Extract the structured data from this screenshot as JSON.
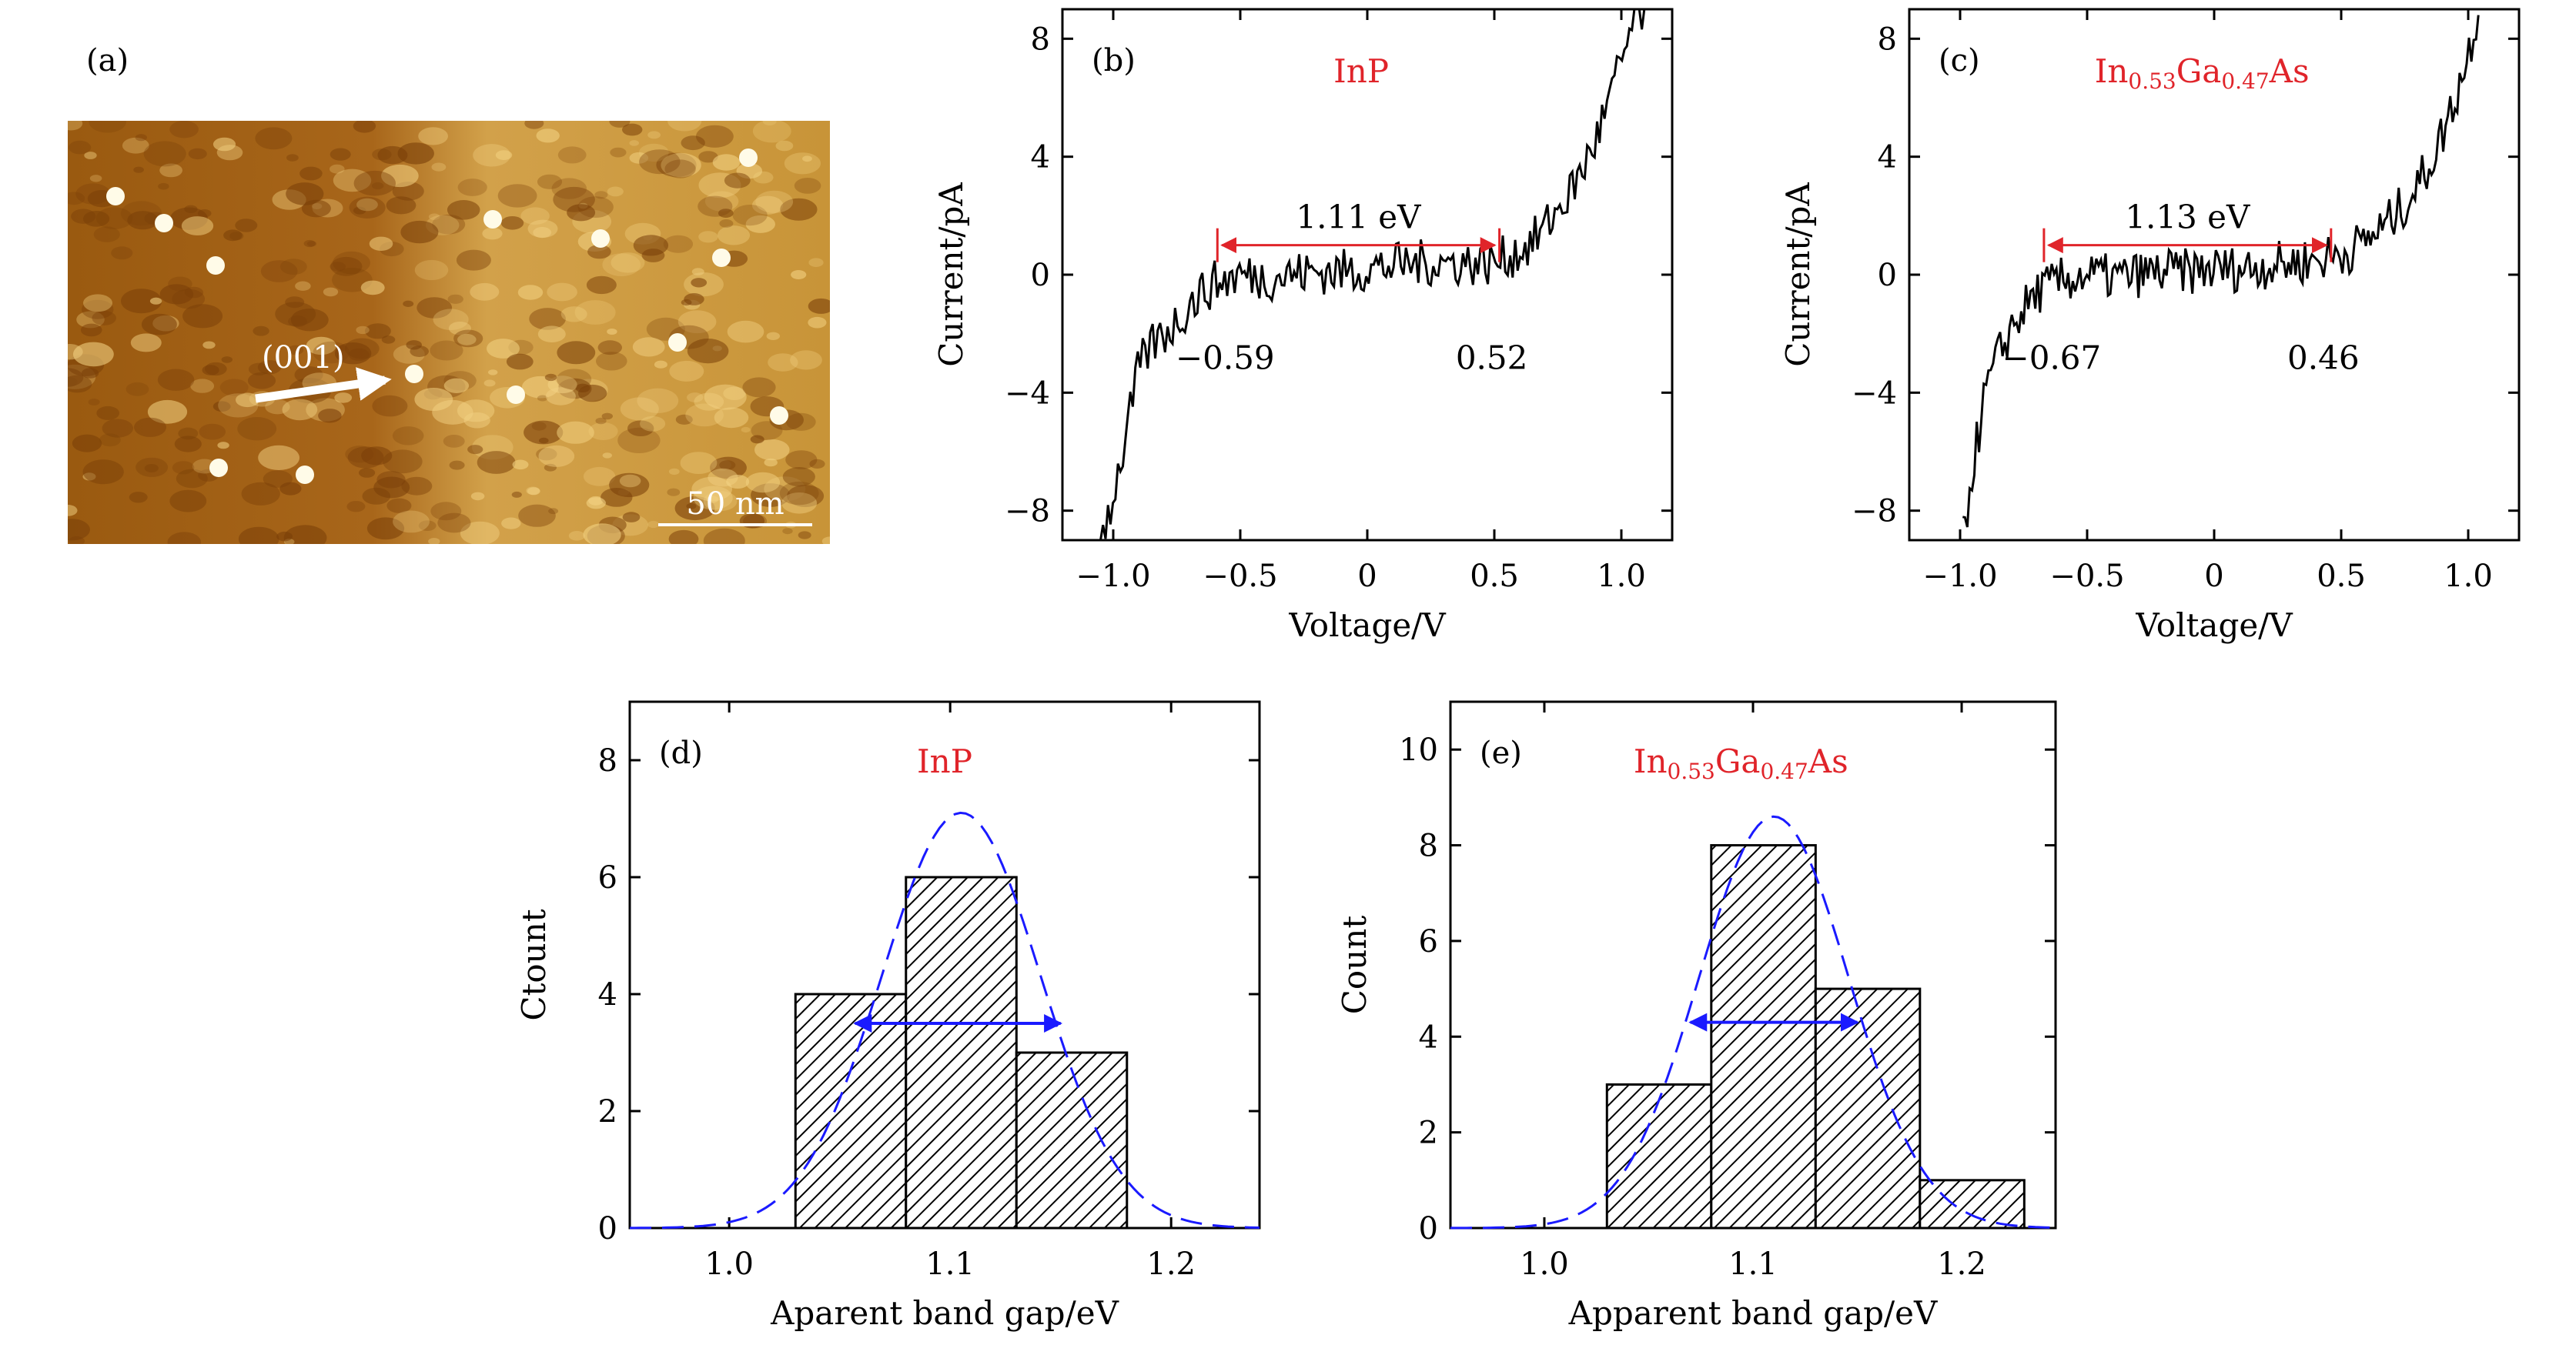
{
  "panel_a": {
    "label": "(a)",
    "arrow_label": "(001)",
    "scale_bar_label": "50 nm"
  },
  "chart_data": [
    {
      "panel": "(b)",
      "type": "line",
      "series_label": "InP",
      "xlabel": "Voltage/V",
      "ylabel": "Current/pA",
      "xlim": [
        -1.2,
        1.2
      ],
      "ylim": [
        -9,
        9
      ],
      "xticks": [
        "−1.0",
        "−0.5",
        "0",
        "0.5",
        "1.0"
      ],
      "yticks": [
        "−8",
        "−4",
        "0",
        "4",
        "8"
      ],
      "gap_label": "1.11 eV",
      "left_edge": -0.59,
      "right_edge": 0.52,
      "left_edge_label": "−0.59",
      "right_edge_label": "0.52",
      "curve": {
        "x": [
          -1.05,
          -1.0,
          -0.95,
          -0.9,
          -0.85,
          -0.8,
          -0.75,
          -0.7,
          -0.65,
          -0.6,
          -0.5,
          -0.4,
          -0.3,
          -0.2,
          -0.1,
          0.0,
          0.1,
          0.2,
          0.3,
          0.4,
          0.5,
          0.55,
          0.6,
          0.65,
          0.7,
          0.75,
          0.8,
          0.85,
          0.9,
          0.95,
          1.0,
          1.05,
          1.1
        ],
        "y": [
          -9,
          -7.5,
          -5.5,
          -3.2,
          -2.4,
          -2.0,
          -1.6,
          -1.0,
          -0.6,
          -0.3,
          0.0,
          -0.1,
          0.0,
          0.1,
          0.1,
          0.2,
          0.3,
          0.4,
          0.4,
          0.4,
          0.4,
          0.6,
          0.8,
          1.1,
          1.6,
          2.2,
          2.8,
          3.6,
          4.6,
          5.8,
          7.2,
          8.6,
          9
        ]
      }
    },
    {
      "panel": "(c)",
      "type": "line",
      "series_label": "In0.53Ga0.47As",
      "xlabel": "Voltage/V",
      "ylabel": "Current/pA",
      "xlim": [
        -1.2,
        1.2
      ],
      "ylim": [
        -9,
        9
      ],
      "xticks": [
        "−1.0",
        "−0.5",
        "0",
        "0.5",
        "1.0"
      ],
      "yticks": [
        "−8",
        "−4",
        "0",
        "4",
        "8"
      ],
      "gap_label": "1.13 eV",
      "left_edge": -0.67,
      "right_edge": 0.46,
      "left_edge_label": "−0.67",
      "right_edge_label": "0.46",
      "curve": {
        "x": [
          -0.99,
          -0.95,
          -0.9,
          -0.85,
          -0.8,
          -0.75,
          -0.7,
          -0.6,
          -0.5,
          -0.4,
          -0.3,
          -0.2,
          -0.1,
          0.0,
          0.1,
          0.2,
          0.3,
          0.4,
          0.5,
          0.55,
          0.6,
          0.65,
          0.7,
          0.75,
          0.8,
          0.85,
          0.9,
          0.95,
          1.0,
          1.04
        ],
        "y": [
          -9,
          -6.5,
          -4.0,
          -2.8,
          -1.8,
          -1.2,
          -0.6,
          -0.2,
          0.0,
          -0.1,
          0.0,
          0.1,
          0.1,
          0.2,
          0.2,
          0.3,
          0.4,
          0.5,
          0.7,
          0.9,
          1.2,
          1.5,
          1.9,
          2.4,
          3.0,
          3.8,
          4.8,
          6.0,
          7.5,
          9
        ]
      }
    },
    {
      "panel": "(d)",
      "type": "bar",
      "series_label": "InP",
      "xlabel": "Aparent band gap/eV",
      "ylabel": "Ctount",
      "xlim": [
        0.955,
        1.24
      ],
      "ylim": [
        0,
        9
      ],
      "xticks": [
        "1.0",
        "1.1",
        "1.2"
      ],
      "yticks": [
        "0",
        "2",
        "4",
        "6",
        "8"
      ],
      "bins": [
        {
          "from": 1.03,
          "to": 1.08,
          "count": 4
        },
        {
          "from": 1.08,
          "to": 1.13,
          "count": 6
        },
        {
          "from": 1.13,
          "to": 1.18,
          "count": 3
        }
      ],
      "fit": {
        "center": 1.105,
        "peak": 7.1,
        "sigma": 0.036
      },
      "fwhm_arrow": {
        "from": 1.057,
        "to": 1.15,
        "y": 3.5
      }
    },
    {
      "panel": "(e)",
      "type": "bar",
      "series_label": "In0.53Ga0.47As",
      "xlabel": "Apparent band gap/eV",
      "ylabel": "Count",
      "xlim": [
        0.955,
        1.245
      ],
      "ylim": [
        0,
        11
      ],
      "xticks": [
        "1.0",
        "1.1",
        "1.2"
      ],
      "yticks": [
        "0",
        "2",
        "4",
        "6",
        "8",
        "10"
      ],
      "bins": [
        {
          "from": 1.03,
          "to": 1.08,
          "count": 3
        },
        {
          "from": 1.08,
          "to": 1.13,
          "count": 8
        },
        {
          "from": 1.13,
          "to": 1.18,
          "count": 5
        },
        {
          "from": 1.18,
          "to": 1.23,
          "count": 1
        }
      ],
      "fit": {
        "center": 1.11,
        "peak": 8.6,
        "sigma": 0.036
      },
      "fwhm_arrow": {
        "from": 1.07,
        "to": 1.15,
        "y": 4.3
      }
    }
  ],
  "colors": {
    "annotation_red": "#e0242a",
    "fit_blue": "#1a1aff",
    "afm_dark": "#5a2800",
    "afm_bright": "#ffe89a"
  }
}
